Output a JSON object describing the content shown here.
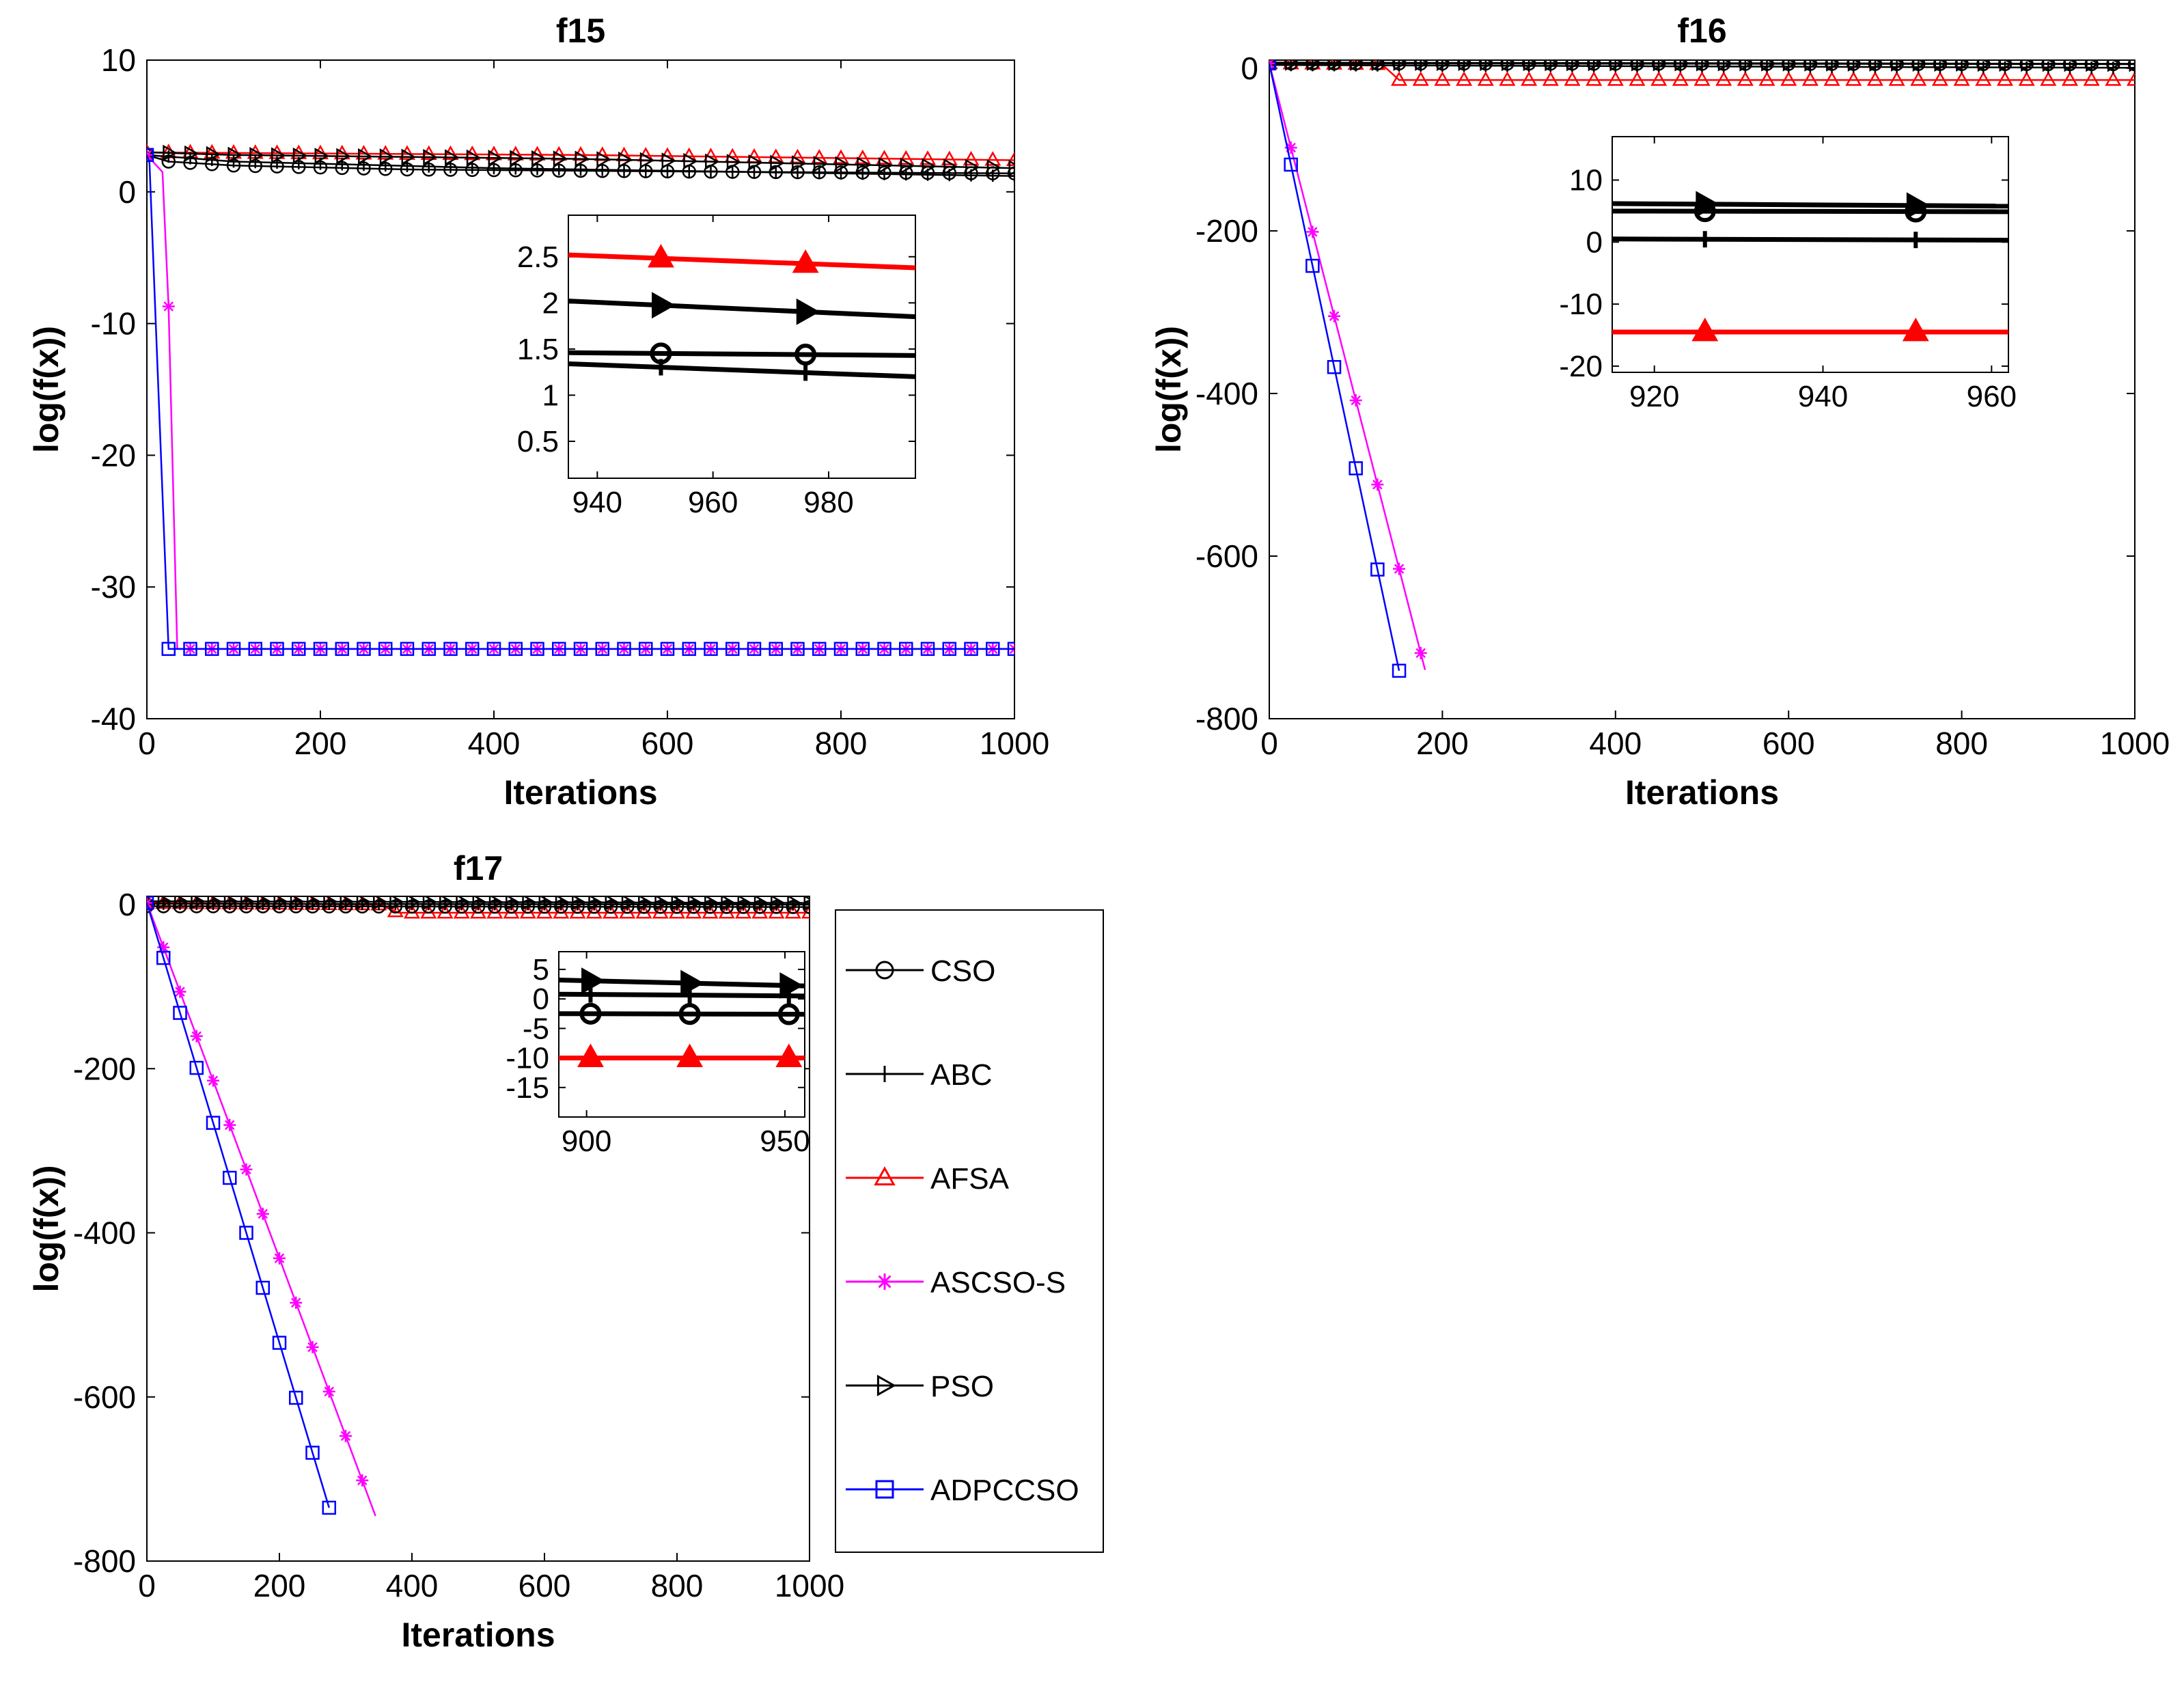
{
  "figure": {
    "legend": [
      {
        "name": "CSO",
        "color": "#000000",
        "marker": "circle"
      },
      {
        "name": "ABC",
        "color": "#000000",
        "marker": "plus"
      },
      {
        "name": "AFSA",
        "color": "#ff0000",
        "marker": "triangle-up"
      },
      {
        "name": "ASCSO-S",
        "color": "#ff00ff",
        "marker": "asterisk"
      },
      {
        "name": "PSO",
        "color": "#000000",
        "marker": "triangle-right"
      },
      {
        "name": "ADPCCSO",
        "color": "#0000ff",
        "marker": "square"
      }
    ]
  },
  "chart_data": [
    {
      "type": "line",
      "title": "f15",
      "xlabel": "Iterations",
      "ylabel": "log(f(x))",
      "xlim": [
        0,
        1000
      ],
      "ylim": [
        -40,
        10
      ],
      "xticks": [
        0,
        200,
        400,
        600,
        800,
        1000
      ],
      "yticks": [
        -40,
        -30,
        -20,
        -10,
        0,
        10
      ],
      "marker_every": 25,
      "series": [
        {
          "name": "CSO",
          "x": [
            0,
            25,
            100,
            300,
            600,
            1000
          ],
          "y": [
            2.8,
            2.3,
            2.0,
            1.7,
            1.55,
            1.4
          ]
        },
        {
          "name": "ABC",
          "x": [
            0,
            100,
            400,
            700,
            1000
          ],
          "y": [
            2.8,
            2.3,
            1.8,
            1.5,
            1.2
          ]
        },
        {
          "name": "AFSA",
          "x": [
            0,
            100,
            500,
            1000
          ],
          "y": [
            3.0,
            2.95,
            2.8,
            2.4
          ]
        },
        {
          "name": "ASCSO-S",
          "x": [
            0,
            18,
            25,
            35,
            50,
            1000
          ],
          "y": [
            2.8,
            1.5,
            -8.7,
            -34.7,
            -34.7,
            -34.7
          ]
        },
        {
          "name": "PSO",
          "x": [
            0,
            100,
            500,
            1000
          ],
          "y": [
            3.0,
            2.8,
            2.5,
            1.8
          ]
        },
        {
          "name": "ADPCCSO",
          "x": [
            0,
            3,
            25,
            1000
          ],
          "y": [
            2.8,
            2.2,
            -34.7,
            -34.7
          ]
        }
      ],
      "inset": {
        "xlim": [
          935,
          995
        ],
        "ylim": [
          0.1,
          2.95
        ],
        "xticks": [
          940,
          960,
          980
        ],
        "yticks": [
          0.5,
          1,
          1.5,
          2,
          2.5
        ],
        "marker_x": [
          951,
          976
        ],
        "series": [
          {
            "name": "AFSA",
            "x": [
              935,
              995
            ],
            "y": [
              2.52,
              2.38
            ]
          },
          {
            "name": "PSO",
            "x": [
              935,
              995
            ],
            "y": [
              2.02,
              1.85
            ]
          },
          {
            "name": "CSO",
            "x": [
              935,
              995
            ],
            "y": [
              1.46,
              1.43
            ]
          },
          {
            "name": "ABC",
            "x": [
              935,
              995
            ],
            "y": [
              1.34,
              1.2
            ]
          }
        ]
      }
    },
    {
      "type": "line",
      "title": "f16",
      "xlabel": "Iterations",
      "ylabel": "log(f(x))",
      "xlim": [
        0,
        1000
      ],
      "ylim": [
        -800,
        10
      ],
      "xticks": [
        0,
        200,
        400,
        600,
        800,
        1000
      ],
      "yticks": [
        -800,
        -600,
        -400,
        -200,
        0
      ],
      "marker_every": 25,
      "series": [
        {
          "name": "CSO",
          "x": [
            0,
            1000
          ],
          "y": [
            6,
            5
          ]
        },
        {
          "name": "ABC",
          "x": [
            0,
            1000
          ],
          "y": [
            4,
            0.5
          ]
        },
        {
          "name": "AFSA",
          "x": [
            0,
            130,
            150,
            1000
          ],
          "y": [
            6,
            5,
            -14.5,
            -14.5
          ]
        },
        {
          "name": "ASCSO-S",
          "x": [
            0,
            180
          ],
          "y": [
            6,
            -740
          ]
        },
        {
          "name": "PSO",
          "x": [
            0,
            1000
          ],
          "y": [
            7,
            5.5
          ]
        },
        {
          "name": "ADPCCSO",
          "x": [
            0,
            150
          ],
          "y": [
            6,
            -741
          ]
        }
      ],
      "inset": {
        "xlim": [
          915,
          962
        ],
        "ylim": [
          -21,
          17
        ],
        "xticks": [
          920,
          940,
          960
        ],
        "yticks": [
          -20,
          -10,
          0,
          10
        ],
        "marker_x": [
          926,
          951
        ],
        "series": [
          {
            "name": "PSO",
            "x": [
              915,
              962
            ],
            "y": [
              6.2,
              5.8
            ]
          },
          {
            "name": "CSO",
            "x": [
              915,
              962
            ],
            "y": [
              5.0,
              4.9
            ]
          },
          {
            "name": "ABC",
            "x": [
              915,
              962
            ],
            "y": [
              0.5,
              0.3
            ]
          },
          {
            "name": "AFSA",
            "x": [
              915,
              962
            ],
            "y": [
              -14.5,
              -14.5
            ]
          }
        ]
      }
    },
    {
      "type": "line",
      "title": "f17",
      "xlabel": "Iterations",
      "ylabel": "log(f(x))",
      "xlim": [
        0,
        1000
      ],
      "ylim": [
        -800,
        10
      ],
      "xticks": [
        0,
        200,
        400,
        600,
        800,
        1000
      ],
      "yticks": [
        -800,
        -600,
        -400,
        -200,
        0
      ],
      "marker_every": 25,
      "series": [
        {
          "name": "CSO",
          "x": [
            0,
            1000
          ],
          "y": [
            -2,
            -3
          ]
        },
        {
          "name": "ABC",
          "x": [
            0,
            1000
          ],
          "y": [
            1,
            0
          ]
        },
        {
          "name": "AFSA",
          "x": [
            0,
            350,
            380,
            1000
          ],
          "y": [
            2,
            0,
            -10,
            -10
          ]
        },
        {
          "name": "ASCSO-S",
          "x": [
            0,
            345
          ],
          "y": [
            2,
            -745
          ]
        },
        {
          "name": "PSO",
          "x": [
            0,
            1000
          ],
          "y": [
            4,
            2
          ]
        },
        {
          "name": "ADPCCSO",
          "x": [
            0,
            275
          ],
          "y": [
            2,
            -735
          ]
        }
      ],
      "inset": {
        "xlim": [
          893,
          955
        ],
        "ylim": [
          -20,
          8
        ],
        "xticks": [
          900,
          950
        ],
        "yticks": [
          -15,
          -10,
          -5,
          0,
          5
        ],
        "marker_x": [
          901,
          926,
          951
        ],
        "series": [
          {
            "name": "PSO",
            "x": [
              893,
              955
            ],
            "y": [
              3.2,
              2.2
            ]
          },
          {
            "name": "ABC",
            "x": [
              893,
              955
            ],
            "y": [
              0.8,
              0.5
            ]
          },
          {
            "name": "CSO",
            "x": [
              893,
              955
            ],
            "y": [
              -2.5,
              -2.6
            ]
          },
          {
            "name": "AFSA",
            "x": [
              893,
              955
            ],
            "y": [
              -10,
              -10
            ]
          }
        ]
      }
    }
  ]
}
